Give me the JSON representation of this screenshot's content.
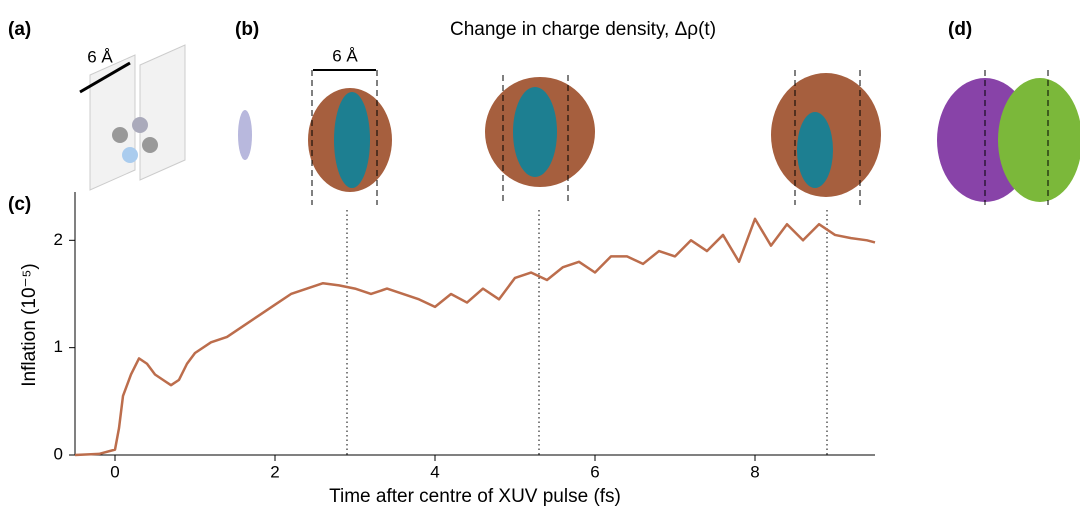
{
  "chart_data": {
    "type": "line",
    "title": "Change in charge density, Δρ(t)",
    "xlabel": "Time after centre of XUV pulse (fs)",
    "ylabel": "Inflation (10⁻⁵)",
    "panel_labels": [
      "(a)",
      "(b)",
      "(c)",
      "(d)"
    ],
    "scale_labels": [
      "6 Å",
      "6 Å"
    ],
    "x": [
      -0.5,
      -0.2,
      0,
      0.05,
      0.1,
      0.2,
      0.3,
      0.4,
      0.5,
      0.6,
      0.7,
      0.8,
      0.9,
      1.0,
      1.2,
      1.4,
      1.6,
      1.8,
      2.0,
      2.2,
      2.4,
      2.6,
      2.8,
      3.0,
      3.2,
      3.4,
      3.6,
      3.8,
      4.0,
      4.2,
      4.4,
      4.6,
      4.8,
      5.0,
      5.2,
      5.4,
      5.6,
      5.8,
      6.0,
      6.2,
      6.4,
      6.6,
      6.8,
      7.0,
      7.2,
      7.4,
      7.6,
      7.8,
      8.0,
      8.2,
      8.4,
      8.6,
      8.8,
      9.0,
      9.2,
      9.4,
      9.5
    ],
    "series": [
      {
        "color": "#bc6d4c",
        "values": [
          0,
          0.01,
          0.05,
          0.25,
          0.55,
          0.75,
          0.9,
          0.85,
          0.75,
          0.7,
          0.65,
          0.7,
          0.85,
          0.95,
          1.05,
          1.1,
          1.2,
          1.3,
          1.4,
          1.5,
          1.55,
          1.6,
          1.58,
          1.55,
          1.5,
          1.55,
          1.5,
          1.45,
          1.38,
          1.5,
          1.42,
          1.55,
          1.45,
          1.65,
          1.7,
          1.63,
          1.75,
          1.8,
          1.7,
          1.85,
          1.85,
          1.78,
          1.9,
          1.85,
          2.0,
          1.9,
          2.05,
          1.8,
          2.2,
          1.95,
          2.15,
          2.0,
          2.15,
          2.05,
          2.02,
          2.0,
          1.98
        ]
      }
    ],
    "vlines": [
      2.9,
      5.3,
      8.9
    ],
    "xlim": [
      -0.5,
      9.5
    ],
    "ylim": [
      0,
      2.45
    ],
    "xticks": [
      0,
      2,
      4,
      6,
      8
    ],
    "yticks": [
      0,
      1,
      2
    ]
  }
}
